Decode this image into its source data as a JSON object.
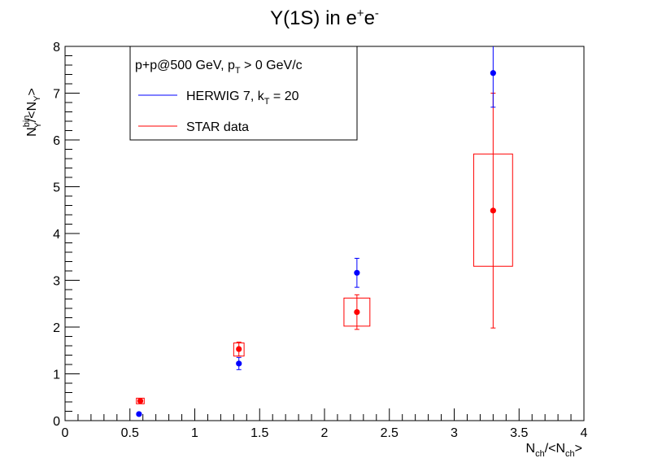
{
  "chart_data": {
    "type": "scatter",
    "title": {
      "main": "Υ(1S) in e",
      "sup1": "+",
      "mid": "e",
      "sup2": "-"
    },
    "xlabel": {
      "a": "N",
      "a_sub": "ch",
      "b": "/<N",
      "b_sub": "ch",
      "c": ">"
    },
    "ylabel": {
      "a": "N",
      "a_sup": "bin",
      "a_sub": "Υ",
      "b": "/<N",
      "b_sub": "Υ",
      "c": ">"
    },
    "xlim": [
      0,
      4
    ],
    "ylim": [
      0,
      8
    ],
    "x_ticks": [
      "0",
      "0.5",
      "1",
      "1.5",
      "2",
      "2.5",
      "3",
      "3.5",
      "4"
    ],
    "y_ticks": [
      "0",
      "1",
      "2",
      "3",
      "4",
      "5",
      "6",
      "7",
      "8"
    ],
    "grid": false,
    "legend": {
      "placement": "top-left",
      "header": {
        "a": "p+p@500 GeV, p",
        "a_sub": "T",
        "b": " > 0 GeV/c"
      },
      "entries": [
        {
          "a": "HERWIG 7, k",
          "a_sub": "T",
          "b": " = 20",
          "color": "#0000ff"
        },
        {
          "a": "STAR data",
          "a_sub": "",
          "b": "",
          "color": "#ff0000"
        }
      ]
    },
    "series": [
      {
        "color": "#0000ff",
        "points": [
          {
            "x": 0.57,
            "y": 0.14,
            "err": 0.02
          },
          {
            "x": 1.34,
            "y": 1.22,
            "err": 0.13
          },
          {
            "x": 2.25,
            "y": 3.16,
            "err": 0.31
          },
          {
            "x": 3.3,
            "y": 7.43,
            "err": 0.73
          }
        ]
      },
      {
        "color": "#ff0000",
        "points": [
          {
            "x": 0.58,
            "y": 0.42,
            "err": 0.03,
            "sys_x": [
              0.55,
              0.61
            ],
            "sys_y": [
              0.36,
              0.48
            ]
          },
          {
            "x": 1.34,
            "y": 1.53,
            "err": 0.15,
            "sys_x": [
              1.3,
              1.38
            ],
            "sys_y": [
              1.38,
              1.66
            ]
          },
          {
            "x": 2.25,
            "y": 2.32,
            "err": 0.37,
            "sys_x": [
              2.15,
              2.35
            ],
            "sys_y": [
              2.02,
              2.62
            ]
          },
          {
            "x": 3.3,
            "y": 4.49,
            "err": 2.51,
            "sys_x": [
              3.15,
              3.45
            ],
            "sys_y": [
              3.3,
              5.7
            ]
          }
        ]
      }
    ]
  }
}
